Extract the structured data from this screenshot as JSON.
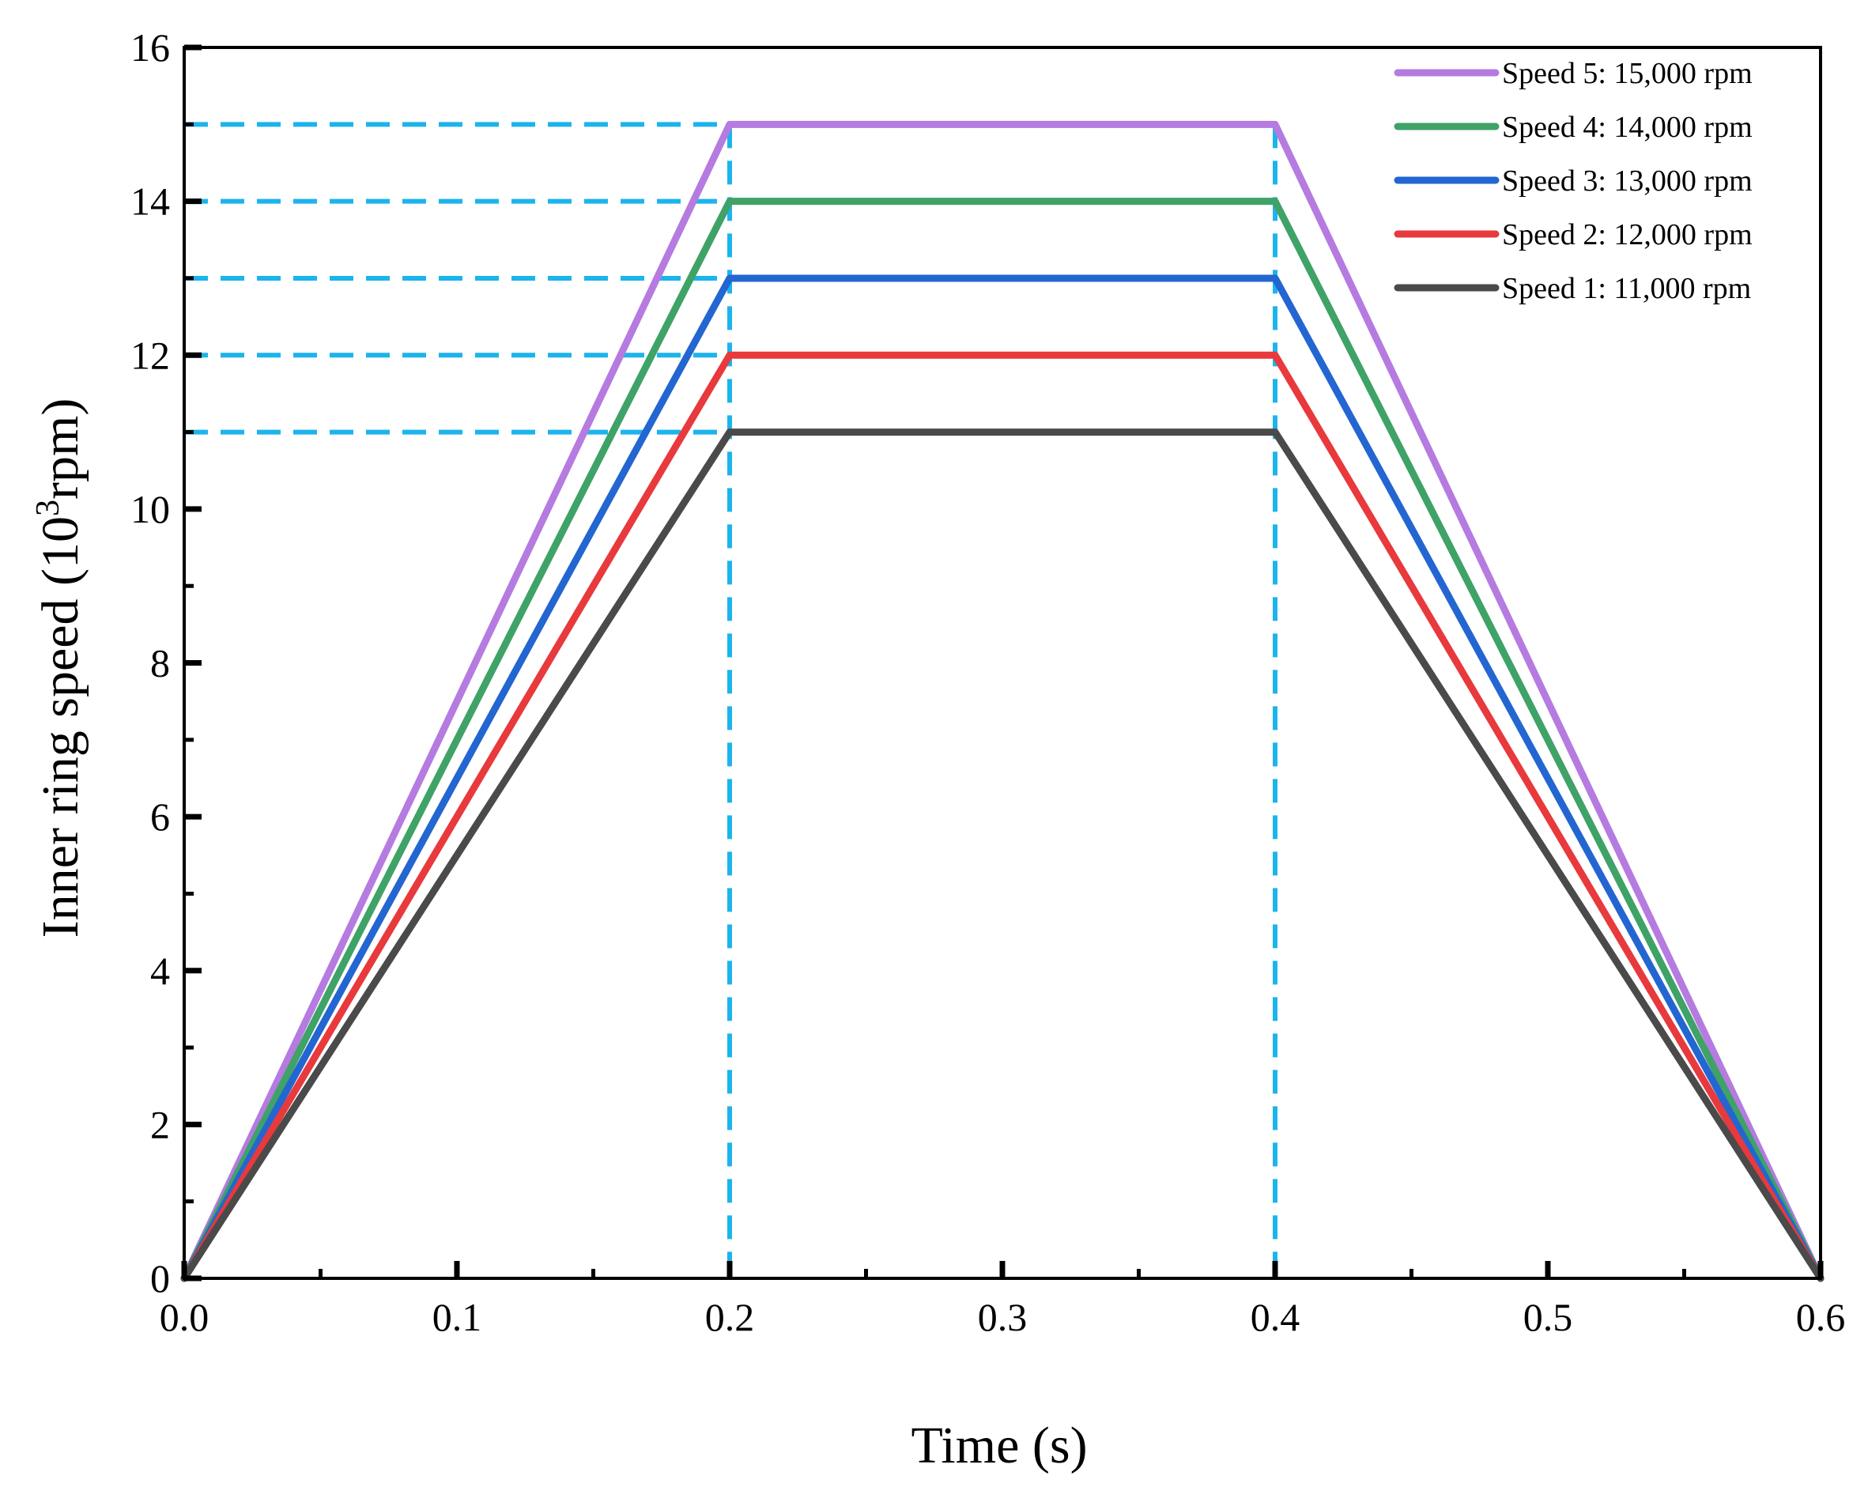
{
  "chart_data": {
    "type": "line",
    "xlabel": "Time (s)",
    "ylabel": {
      "base": "Inner ring speed (10",
      "sup": "3",
      "tail": "rpm)"
    },
    "xlim": [
      0,
      0.6
    ],
    "ylim": [
      0,
      16
    ],
    "x_ticks": [
      "0.0",
      "0.1",
      "0.2",
      "0.3",
      "0.4",
      "0.5",
      "0.6"
    ],
    "y_ticks": [
      "0",
      "2",
      "4",
      "6",
      "8",
      "10",
      "12",
      "14",
      "16"
    ],
    "grid": false,
    "legend_position": "top-right",
    "series": [
      {
        "name": "Speed 5: 15,000 rpm",
        "color": "#b57be0",
        "x": [
          0,
          0.2,
          0.4,
          0.6
        ],
        "y": [
          0,
          15,
          15,
          0
        ]
      },
      {
        "name": "Speed 4: 14,000 rpm",
        "color": "#3fa267",
        "x": [
          0,
          0.2,
          0.4,
          0.6
        ],
        "y": [
          0,
          14,
          14,
          0
        ]
      },
      {
        "name": "Speed 3: 13,000 rpm",
        "color": "#2366d1",
        "x": [
          0,
          0.2,
          0.4,
          0.6
        ],
        "y": [
          0,
          13,
          13,
          0
        ]
      },
      {
        "name": "Speed 2: 12,000 rpm",
        "color": "#e8393c",
        "x": [
          0,
          0.2,
          0.4,
          0.6
        ],
        "y": [
          0,
          12,
          12,
          0
        ]
      },
      {
        "name": "Speed 1: 11,000 rpm",
        "color": "#4a4a4a",
        "x": [
          0,
          0.2,
          0.4,
          0.6
        ],
        "y": [
          0,
          11,
          11,
          0
        ]
      }
    ],
    "reference_lines": {
      "color": "#1cb4ec",
      "style": "dashed",
      "horizontal": [
        {
          "y": 15,
          "x_end": 0.2
        },
        {
          "y": 14,
          "x_end": 0.2
        },
        {
          "y": 13,
          "x_end": 0.2
        },
        {
          "y": 12,
          "x_end": 0.2
        },
        {
          "y": 11,
          "x_end": 0.2
        }
      ],
      "vertical": [
        {
          "x": 0.2,
          "y_end": 15
        },
        {
          "x": 0.4,
          "y_end": 15
        }
      ]
    }
  }
}
